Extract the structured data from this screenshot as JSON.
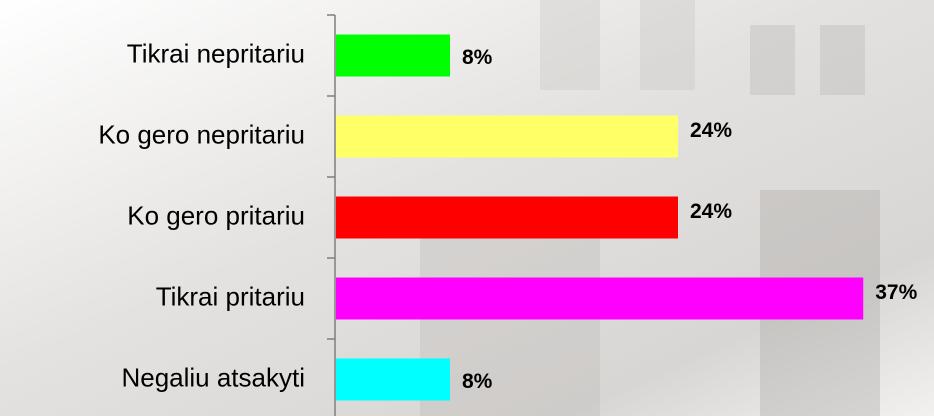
{
  "chart_data": {
    "type": "barh",
    "categories": [
      "Tikrai nepritariu",
      "Ko gero nepritariu",
      "Ko gero pritariu",
      "Tikrai pritariu",
      "Negaliu atsakyti"
    ],
    "values": [
      8,
      24,
      24,
      37,
      8
    ],
    "value_labels": [
      "8%",
      "24%",
      "24%",
      "37%",
      "8%"
    ],
    "colors": [
      "#00ff00",
      "#ffff66",
      "#ff0000",
      "#ff00ff",
      "#00ffff"
    ]
  }
}
